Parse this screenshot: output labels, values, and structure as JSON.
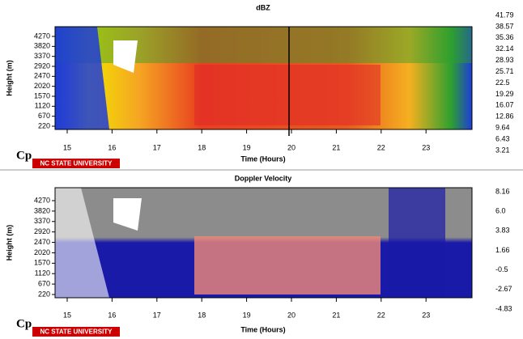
{
  "panels": [
    {
      "title": "dBZ",
      "y_label": "Height (m)",
      "x_label": "Time (Hours)",
      "yticks": [
        "4270",
        "3820",
        "3370",
        "2920",
        "2470",
        "2020",
        "1570",
        "1120",
        "670",
        "220"
      ],
      "xticks": [
        "15",
        "16",
        "17",
        "18",
        "19",
        "20",
        "21",
        "22",
        "23"
      ],
      "colorbar_labels": [
        "41.79",
        "38.57",
        "35.36",
        "32.14",
        "28.93",
        "25.71",
        "22.5",
        "19.29",
        "16.07",
        "12.86",
        "9.64",
        "6.43",
        "3.21"
      ],
      "logo_mark": "Cp",
      "logo_text": "NC STATE UNIVERSITY"
    },
    {
      "title": "Doppler Velocity",
      "y_label": "Height (m)",
      "x_label": "Time (Hours)",
      "yticks": [
        "4270",
        "3820",
        "3370",
        "2920",
        "2470",
        "2020",
        "1570",
        "1120",
        "670",
        "220"
      ],
      "xticks": [
        "15",
        "16",
        "17",
        "18",
        "19",
        "20",
        "21",
        "22",
        "23"
      ],
      "colorbar_labels": [
        "8.16",
        "6.0",
        "3.83",
        "1.66",
        "-0.5",
        "-2.67",
        "-4.83"
      ],
      "logo_mark": "Cp",
      "logo_text": "NC STATE UNIVERSITY"
    }
  ]
}
